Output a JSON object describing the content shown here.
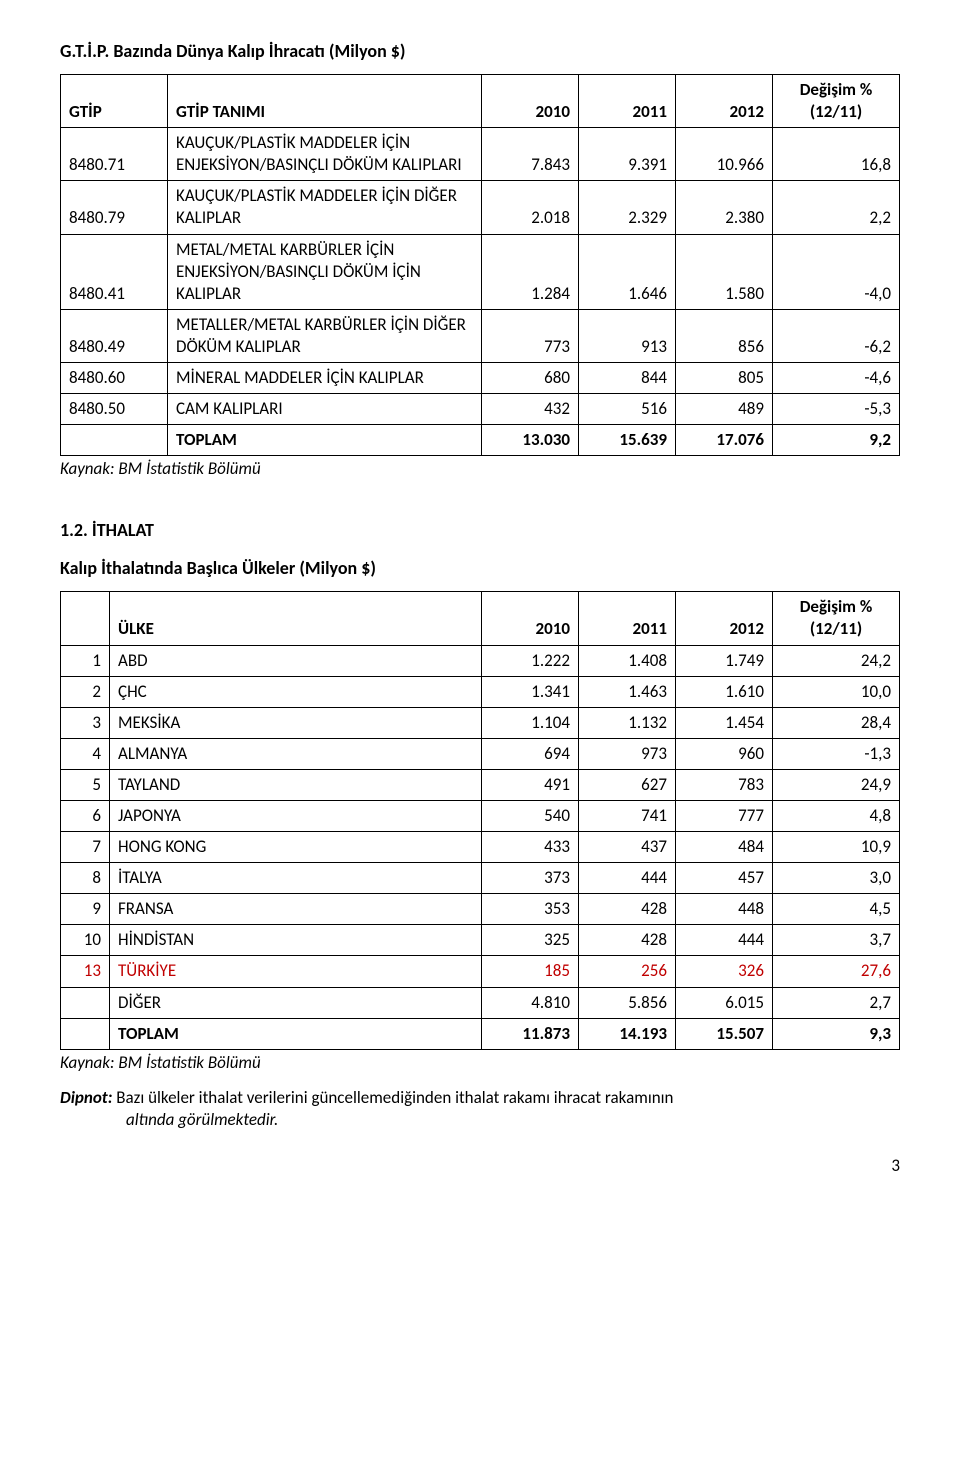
{
  "title1": "G.T.İ.P. Bazında Dünya Kalıp İhracatı (Milyon $)",
  "t1": {
    "headers": {
      "gtip": "GTİP",
      "desc": "GTİP TANIMI",
      "y2010": "2010",
      "y2011": "2011",
      "y2012": "2012",
      "change": "Değişim %\n(12/11)"
    },
    "rows": [
      {
        "code": "8480.71",
        "desc": "KAUÇUK/PLASTİK MADDELER İÇİN ENJEKSİYON/BASINÇLI DÖKÜM KALIPLARI",
        "v2010": "7.843",
        "v2011": "9.391",
        "v2012": "10.966",
        "chg": "16,8"
      },
      {
        "code": "8480.79",
        "desc": "KAUÇUK/PLASTİK MADDELER İÇİN DİĞER KALIPLAR",
        "v2010": "2.018",
        "v2011": "2.329",
        "v2012": "2.380",
        "chg": "2,2"
      },
      {
        "code": "8480.41",
        "desc": "METAL/METAL KARBÜRLER İÇİN ENJEKSİYON/BASINÇLI DÖKÜM İÇİN KALIPLAR",
        "v2010": "1.284",
        "v2011": "1.646",
        "v2012": "1.580",
        "chg": "-4,0"
      },
      {
        "code": "8480.49",
        "desc": "METALLER/METAL KARBÜRLER İÇİN DİĞER DÖKÜM KALIPLAR",
        "v2010": "773",
        "v2011": "913",
        "v2012": "856",
        "chg": "-6,2"
      },
      {
        "code": "8480.60",
        "desc": "MİNERAL MADDELER İÇİN KALIPLAR",
        "v2010": "680",
        "v2011": "844",
        "v2012": "805",
        "chg": "-4,6"
      },
      {
        "code": "8480.50",
        "desc": "CAM KALIPLARI",
        "v2010": "432",
        "v2011": "516",
        "v2012": "489",
        "chg": "-5,3"
      }
    ],
    "total": {
      "label": "TOPLAM",
      "v2010": "13.030",
      "v2011": "15.639",
      "v2012": "17.076",
      "chg": "9,2"
    }
  },
  "source": "Kaynak: BM İstatistik Bölümü",
  "section2": "1.2. İTHALAT",
  "title2": "Kalıp İthalatında Başlıca Ülkeler  (Milyon $)",
  "t2": {
    "headers": {
      "idx": "",
      "country": "ÜLKE",
      "y2010": "2010",
      "y2011": "2011",
      "y2012": "2012",
      "change": "Değişim %\n(12/11)"
    },
    "rows": [
      {
        "i": "1",
        "c": "ABD",
        "v2010": "1.222",
        "v2011": "1.408",
        "v2012": "1.749",
        "chg": "24,2"
      },
      {
        "i": "2",
        "c": "ÇHC",
        "v2010": "1.341",
        "v2011": "1.463",
        "v2012": "1.610",
        "chg": "10,0"
      },
      {
        "i": "3",
        "c": "MEKSİKA",
        "v2010": "1.104",
        "v2011": "1.132",
        "v2012": "1.454",
        "chg": "28,4"
      },
      {
        "i": "4",
        "c": "ALMANYA",
        "v2010": "694",
        "v2011": "973",
        "v2012": "960",
        "chg": "-1,3"
      },
      {
        "i": "5",
        "c": "TAYLAND",
        "v2010": "491",
        "v2011": "627",
        "v2012": "783",
        "chg": "24,9"
      },
      {
        "i": "6",
        "c": "JAPONYA",
        "v2010": "540",
        "v2011": "741",
        "v2012": "777",
        "chg": "4,8"
      },
      {
        "i": "7",
        "c": "HONG KONG",
        "v2010": "433",
        "v2011": "437",
        "v2012": "484",
        "chg": "10,9"
      },
      {
        "i": "8",
        "c": "İTALYA",
        "v2010": "373",
        "v2011": "444",
        "v2012": "457",
        "chg": "3,0"
      },
      {
        "i": "9",
        "c": "FRANSA",
        "v2010": "353",
        "v2011": "428",
        "v2012": "448",
        "chg": "4,5"
      },
      {
        "i": "10",
        "c": "HİNDİSTAN",
        "v2010": "325",
        "v2011": "428",
        "v2012": "444",
        "chg": "3,7"
      },
      {
        "i": "13",
        "c": "TÜRKİYE",
        "v2010": "185",
        "v2011": "256",
        "v2012": "326",
        "chg": "27,6",
        "red": true
      }
    ],
    "other": {
      "label": "DİĞER",
      "v2010": "4.810",
      "v2011": "5.856",
      "v2012": "6.015",
      "chg": "2,7"
    },
    "total": {
      "label": "TOPLAM",
      "v2010": "11.873",
      "v2011": "14.193",
      "v2012": "15.507",
      "chg": "9,3"
    }
  },
  "footnote": {
    "label": "Dipnot:",
    "text": "Bazı ülkeler ithalat verilerini güncellemediğinden ithalat rakamı ihracat rakamının altında görülmektedir."
  },
  "pagenum": "3"
}
